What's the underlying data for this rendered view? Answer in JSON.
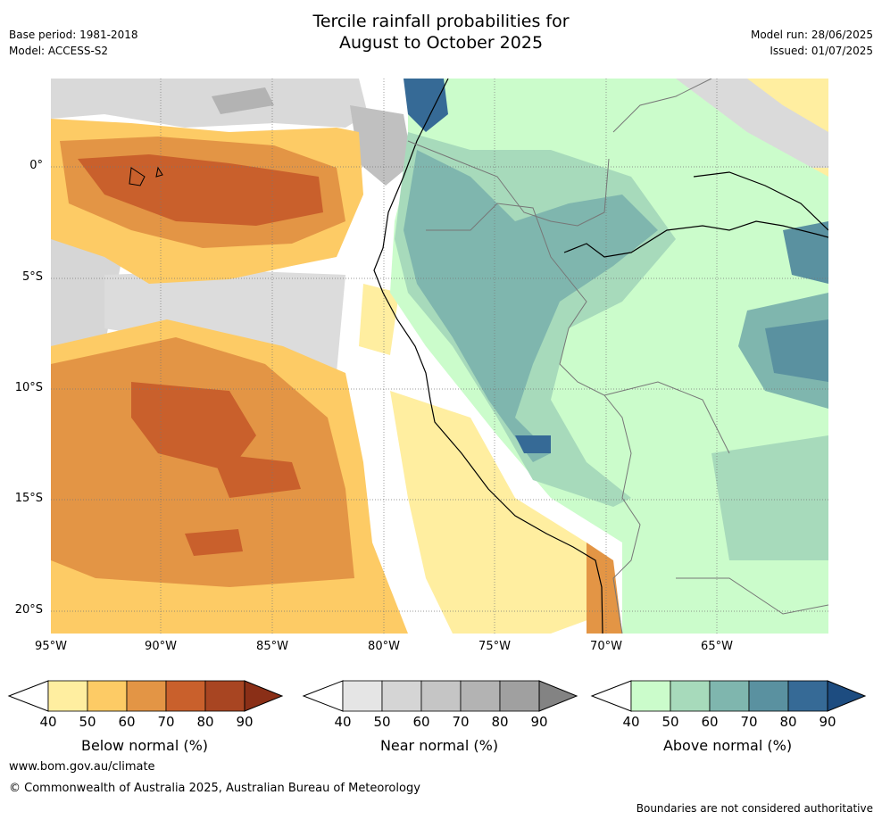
{
  "title_line1": "Tercile rainfall probabilities for",
  "title_line2": "August to October 2025",
  "base_period": "Base period: 1981-2018",
  "model": "Model: ACCESS-S2",
  "model_run": "Model run: 28/06/2025",
  "issued": "Issued: 01/07/2025",
  "lon_ticks": [
    "95°W",
    "90°W",
    "85°W",
    "80°W",
    "75°W",
    "70°W",
    "65°W"
  ],
  "lat_ticks": [
    "0°",
    "5°S",
    "10°S",
    "15°S",
    "20°S"
  ],
  "colorbars": [
    {
      "label": "Below normal (%)",
      "colors": [
        "#ffeea0",
        "#fdcb65",
        "#e39545",
        "#c9602c",
        "#a84522"
      ],
      "extend_color": "#8a2f17"
    },
    {
      "label": "Near normal (%)",
      "colors": [
        "#e5e5e5",
        "#d5d5d5",
        "#c5c5c5",
        "#b3b3b3",
        "#a0a0a0"
      ],
      "extend_color": "#838383"
    },
    {
      "label": "Above normal (%)",
      "colors": [
        "#cbfccb",
        "#a7dabb",
        "#7fb6ae",
        "#5a91a0",
        "#366a96"
      ],
      "extend_color": "#1d4c80"
    }
  ],
  "colorbar_ticks": [
    "40",
    "50",
    "60",
    "70",
    "80",
    "90"
  ],
  "website": "www.bom.gov.au/climate",
  "copyright": "© Commonwealth of Australia 2025, Australian Bureau of Meteorology",
  "disclaimer": "Boundaries are not considered authoritative"
}
